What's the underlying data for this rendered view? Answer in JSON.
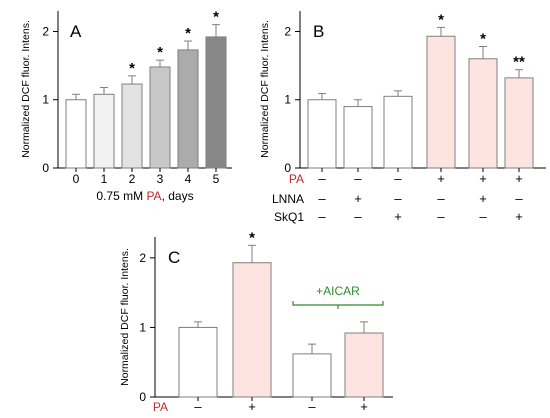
{
  "colors": {
    "pa_red": "#c0282d",
    "aicar_green": "#2e8b2e",
    "bar_edge": "#7f7f7f",
    "pink": "#fde4e0"
  },
  "chart_data": [
    {
      "type": "bar",
      "panel": "A",
      "ylabel": "Normalized DCF fluor. Intens.",
      "xlabel_parts": [
        "0.75 mM ",
        "PA",
        ", days"
      ],
      "categories": [
        "0",
        "1",
        "2",
        "3",
        "4",
        "5"
      ],
      "values": [
        1.0,
        1.08,
        1.23,
        1.48,
        1.73,
        1.92
      ],
      "errors": [
        0.08,
        0.1,
        0.12,
        0.1,
        0.13,
        0.18
      ],
      "colors": [
        "#ffffff",
        "#f2f2f2",
        "#e3e3e3",
        "#c8c8c8",
        "#ababab",
        "#878787"
      ],
      "annotations": [
        "",
        "",
        "*",
        "*",
        "*",
        "*"
      ],
      "ylim": [
        0,
        2.3
      ],
      "yticks": [
        0,
        1,
        2
      ],
      "ytick_labels": [
        "0",
        "1",
        "2"
      ]
    },
    {
      "type": "bar",
      "panel": "B",
      "ylabel": "Normalized DCF fluor. Intens.",
      "values": [
        1.0,
        0.9,
        1.05,
        1.93,
        1.6,
        1.32
      ],
      "errors": [
        0.09,
        0.1,
        0.08,
        0.13,
        0.18,
        0.12
      ],
      "colors": [
        "#ffffff",
        "#ffffff",
        "#ffffff",
        "#fde4e0",
        "#fde4e0",
        "#fde4e0"
      ],
      "annotations": [
        "",
        "",
        "",
        "*",
        "*",
        "**"
      ],
      "ylim": [
        0,
        2.3
      ],
      "yticks": [
        0,
        1,
        2
      ],
      "ytick_labels": [
        "0",
        "1",
        "2"
      ],
      "conditions": [
        {
          "label": "PA",
          "signs": [
            "–",
            "–",
            "–",
            "+",
            "+",
            "+"
          ]
        },
        {
          "label": "LNNA",
          "signs": [
            "–",
            "+",
            "–",
            "–",
            "+",
            "–"
          ]
        },
        {
          "label": "SkQ1",
          "signs": [
            "–",
            "–",
            "+",
            "–",
            "–",
            "+"
          ]
        }
      ]
    },
    {
      "type": "bar",
      "panel": "C",
      "ylabel": "Normalized DCF fluor. Intens.",
      "values": [
        1.0,
        1.93,
        0.62,
        0.92
      ],
      "errors": [
        0.08,
        0.25,
        0.14,
        0.16
      ],
      "colors": [
        "#ffffff",
        "#fde4e0",
        "#ffffff",
        "#fde4e0"
      ],
      "annotations": [
        "",
        "*",
        "",
        ""
      ],
      "ylim": [
        0,
        2.3
      ],
      "yticks": [
        0,
        1,
        2
      ],
      "ytick_labels": [
        "0",
        "1",
        "2"
      ],
      "bracket_label": "+AICAR",
      "conditions": [
        {
          "label": "PA",
          "signs": [
            "–",
            "+",
            "–",
            "+"
          ]
        }
      ]
    }
  ]
}
